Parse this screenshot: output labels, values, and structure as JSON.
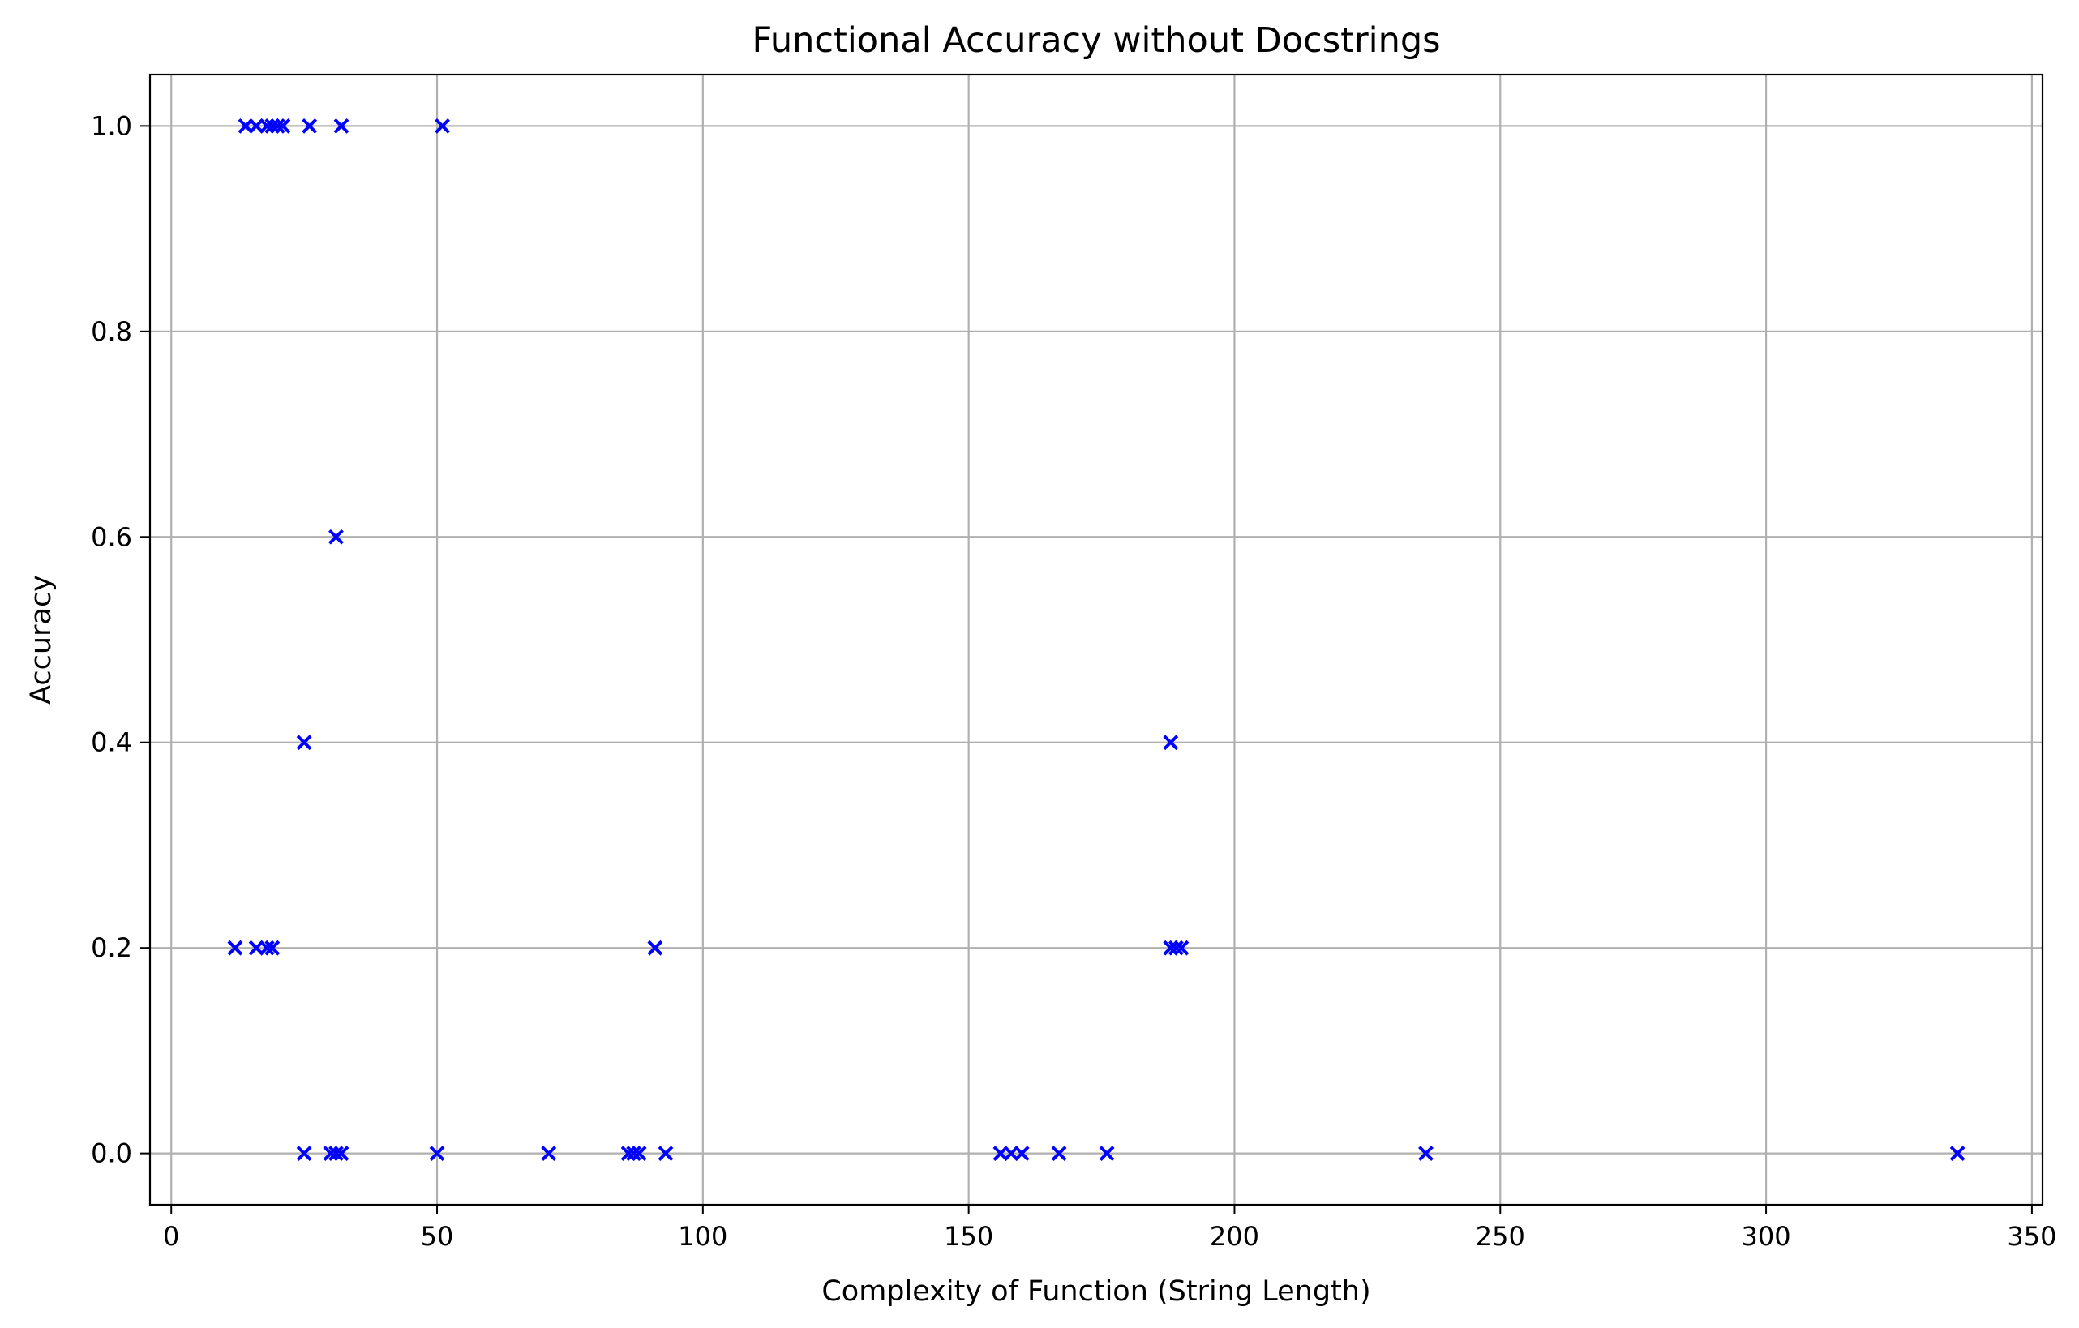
{
  "chart_data": {
    "type": "scatter",
    "title": "Functional Accuracy without Docstrings",
    "xlabel": "Complexity of Function (String Length)",
    "ylabel": "Accuracy",
    "xlim": [
      -4,
      352
    ],
    "ylim": [
      -0.05,
      1.05
    ],
    "xticks": [
      0,
      50,
      100,
      150,
      200,
      250,
      300,
      350
    ],
    "yticks": [
      0.0,
      0.2,
      0.4,
      0.6,
      0.8,
      1.0
    ],
    "xtick_labels": [
      "0",
      "50",
      "100",
      "150",
      "200",
      "250",
      "300",
      "350"
    ],
    "ytick_labels": [
      "0.0",
      "0.2",
      "0.4",
      "0.6",
      "0.8",
      "1.0"
    ],
    "grid": true,
    "marker": "x",
    "color": "#0000ff",
    "points": [
      {
        "x": 14,
        "y": 1.0
      },
      {
        "x": 16,
        "y": 1.0
      },
      {
        "x": 18,
        "y": 1.0
      },
      {
        "x": 19,
        "y": 1.0
      },
      {
        "x": 20,
        "y": 1.0
      },
      {
        "x": 21,
        "y": 1.0
      },
      {
        "x": 26,
        "y": 1.0
      },
      {
        "x": 32,
        "y": 1.0
      },
      {
        "x": 51,
        "y": 1.0
      },
      {
        "x": 31,
        "y": 0.6
      },
      {
        "x": 25,
        "y": 0.4
      },
      {
        "x": 188,
        "y": 0.4
      },
      {
        "x": 12,
        "y": 0.2
      },
      {
        "x": 16,
        "y": 0.2
      },
      {
        "x": 18,
        "y": 0.2
      },
      {
        "x": 19,
        "y": 0.2
      },
      {
        "x": 91,
        "y": 0.2
      },
      {
        "x": 188,
        "y": 0.2
      },
      {
        "x": 189,
        "y": 0.2
      },
      {
        "x": 190,
        "y": 0.2
      },
      {
        "x": 25,
        "y": 0.0
      },
      {
        "x": 30,
        "y": 0.0
      },
      {
        "x": 31,
        "y": 0.0
      },
      {
        "x": 32,
        "y": 0.0
      },
      {
        "x": 50,
        "y": 0.0
      },
      {
        "x": 71,
        "y": 0.0
      },
      {
        "x": 86,
        "y": 0.0
      },
      {
        "x": 87,
        "y": 0.0
      },
      {
        "x": 88,
        "y": 0.0
      },
      {
        "x": 93,
        "y": 0.0
      },
      {
        "x": 156,
        "y": 0.0
      },
      {
        "x": 158,
        "y": 0.0
      },
      {
        "x": 160,
        "y": 0.0
      },
      {
        "x": 167,
        "y": 0.0
      },
      {
        "x": 176,
        "y": 0.0
      },
      {
        "x": 236,
        "y": 0.0
      },
      {
        "x": 336,
        "y": 0.0
      }
    ]
  }
}
